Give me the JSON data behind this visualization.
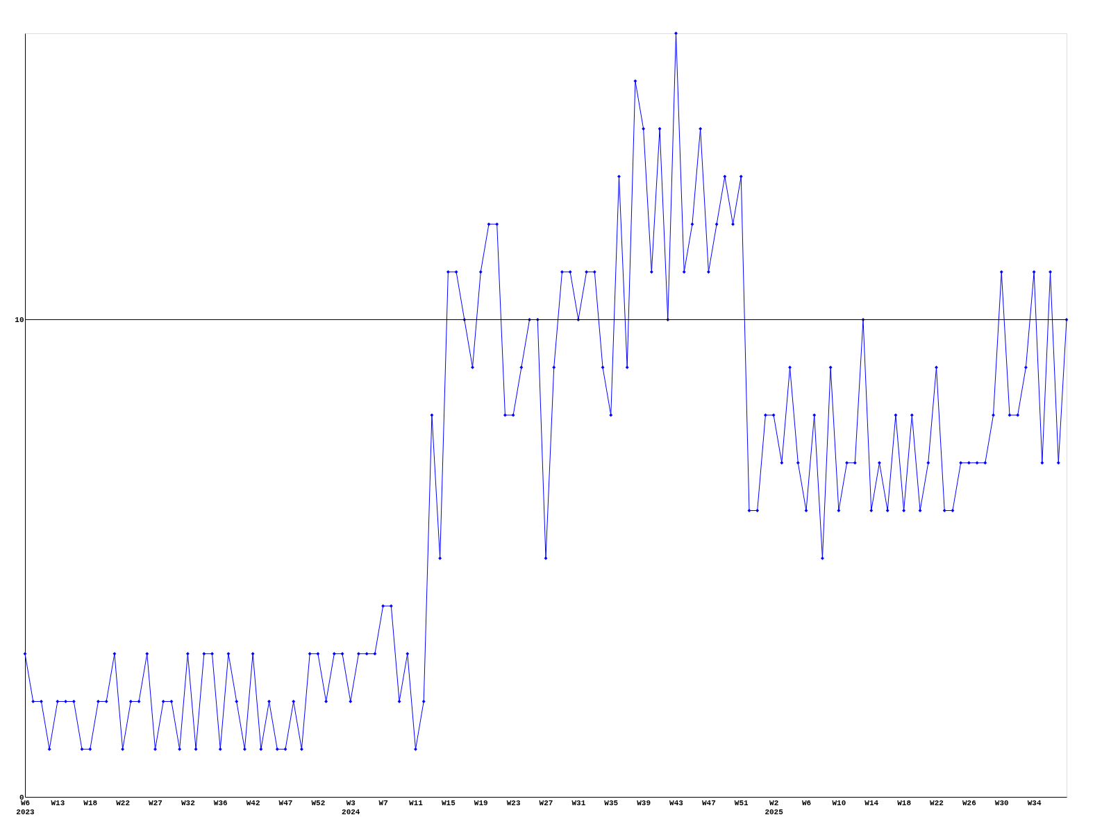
{
  "chart_data": {
    "type": "line",
    "categories": [
      "W6\n2023",
      null,
      null,
      null,
      "W13",
      null,
      null,
      null,
      "W18",
      null,
      null,
      null,
      "W22",
      null,
      null,
      null,
      "W27",
      null,
      null,
      null,
      "W32",
      null,
      null,
      null,
      "W36",
      null,
      null,
      null,
      "W42",
      null,
      null,
      null,
      "W47",
      null,
      null,
      null,
      "W52",
      null,
      null,
      null,
      "W3\n2024",
      null,
      null,
      null,
      "W7",
      null,
      null,
      null,
      "W11",
      null,
      null,
      null,
      "W15",
      null,
      null,
      null,
      "W19",
      null,
      null,
      null,
      "W23",
      null,
      null,
      null,
      "W27",
      null,
      null,
      null,
      "W31",
      null,
      null,
      null,
      "W35",
      null,
      null,
      null,
      "W39",
      null,
      null,
      null,
      "W43",
      null,
      null,
      null,
      "W47",
      null,
      null,
      null,
      "W51",
      null,
      null,
      null,
      "W2\n2025",
      null,
      null,
      null,
      "W6",
      null,
      null,
      null,
      "W10",
      null,
      null,
      null,
      "W14",
      null,
      null,
      null,
      "W18",
      null,
      null,
      null,
      "W22",
      null,
      null,
      null,
      "W26",
      null,
      null,
      null,
      "W30",
      null,
      null,
      null,
      "W34",
      null,
      null,
      null,
      null
    ],
    "series": [
      {
        "color": "#0000ff",
        "values": [
          3,
          2,
          2,
          1,
          2,
          2,
          2,
          1,
          1,
          2,
          2,
          3,
          1,
          2,
          2,
          3,
          1,
          2,
          2,
          1,
          3,
          1,
          3,
          3,
          1,
          3,
          2,
          1,
          3,
          1,
          2,
          1,
          1,
          2,
          1,
          3,
          3,
          2,
          3,
          3,
          2,
          3,
          3,
          3,
          4,
          4,
          2,
          3,
          1,
          2,
          8,
          5,
          11,
          11,
          10,
          9,
          11,
          12,
          12,
          8,
          8,
          9,
          10,
          10,
          5,
          9,
          11,
          11,
          10,
          11,
          11,
          9,
          8,
          13,
          9,
          15,
          14,
          11,
          14,
          10,
          16,
          11,
          12,
          14,
          11,
          12,
          13,
          12,
          13,
          6,
          6,
          8,
          8,
          7,
          9,
          7,
          6,
          8,
          5,
          9,
          6,
          7,
          7,
          10,
          6,
          7,
          6,
          8,
          6,
          8,
          6,
          7,
          9,
          6,
          6,
          7,
          7,
          7,
          7,
          8,
          11,
          8,
          8,
          9,
          11,
          7,
          11,
          7,
          10
        ]
      }
    ],
    "ylim": [
      0,
      16
    ],
    "yticks": [
      0,
      10
    ],
    "ref_lines": [
      {
        "axis": "y",
        "value": 10,
        "color": "#000000"
      }
    ],
    "grid": false,
    "legend": false,
    "marker": "diamond",
    "line_style": "solid"
  }
}
